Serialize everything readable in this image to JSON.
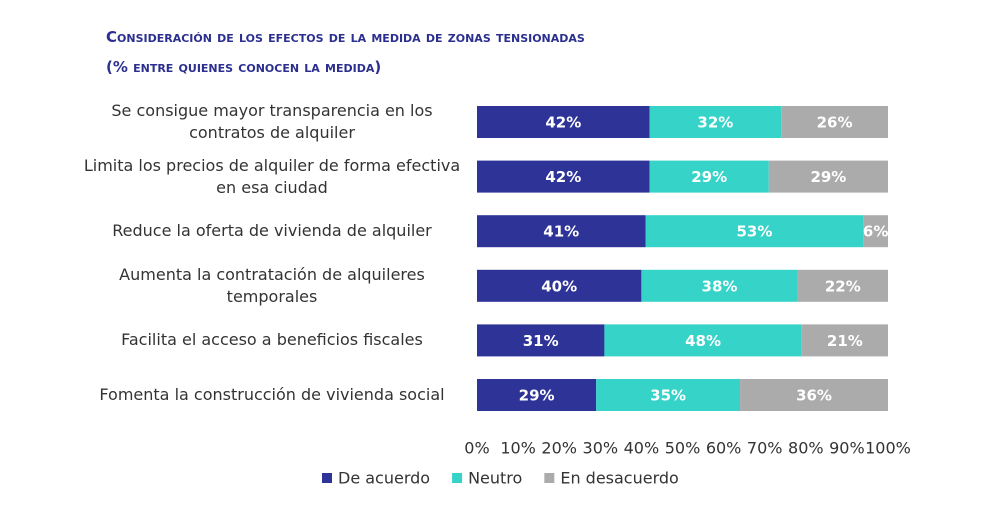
{
  "chart_data": {
    "type": "stacked-barh",
    "title": "Consideración de los efectos de la medida de zonas tensionadas",
    "subtitle": "(% entre quienes conocen la medida)",
    "categories": [
      "Se consigue mayor transparencia en los contratos de alquiler",
      "Limita los precios de alquiler de forma efectiva en esa ciudad",
      "Reduce la oferta de vivienda de alquiler",
      "Aumenta la contratación de alquileres temporales",
      "Facilita el acceso a beneficios fiscales",
      "Fomenta la construcción de vivienda social"
    ],
    "series": [
      {
        "name": "De acuerdo",
        "color": "#2e3398",
        "values": [
          42,
          42,
          41,
          40,
          31,
          29
        ],
        "value_labels": [
          "42%",
          "42%",
          "41%",
          "40%",
          "31%",
          "29%"
        ]
      },
      {
        "name": "Neutro",
        "color": "#35d3c8",
        "values": [
          32,
          29,
          53,
          38,
          48,
          35
        ],
        "value_labels": [
          "32%",
          "29%",
          "53%",
          "38%",
          "48%",
          "35%"
        ]
      },
      {
        "name": "En desacuerdo",
        "color": "#ababab",
        "values": [
          26,
          29,
          6,
          22,
          21,
          36
        ],
        "value_labels": [
          "26%",
          "29%",
          "6%",
          "22%",
          "21%",
          "36%"
        ]
      }
    ],
    "xlim": [
      0,
      100
    ],
    "xticks": [
      {
        "value": 0,
        "label": "0%"
      },
      {
        "value": 10,
        "label": "10%"
      },
      {
        "value": 20,
        "label": "20%"
      },
      {
        "value": 30,
        "label": "30%"
      },
      {
        "value": 40,
        "label": "40%"
      },
      {
        "value": 50,
        "label": "50%"
      },
      {
        "value": 60,
        "label": "60%"
      },
      {
        "value": 70,
        "label": "70%"
      },
      {
        "value": 80,
        "label": "80%"
      },
      {
        "value": 90,
        "label": "90%"
      },
      {
        "value": 100,
        "label": "100%"
      }
    ],
    "legend": "bottom"
  }
}
